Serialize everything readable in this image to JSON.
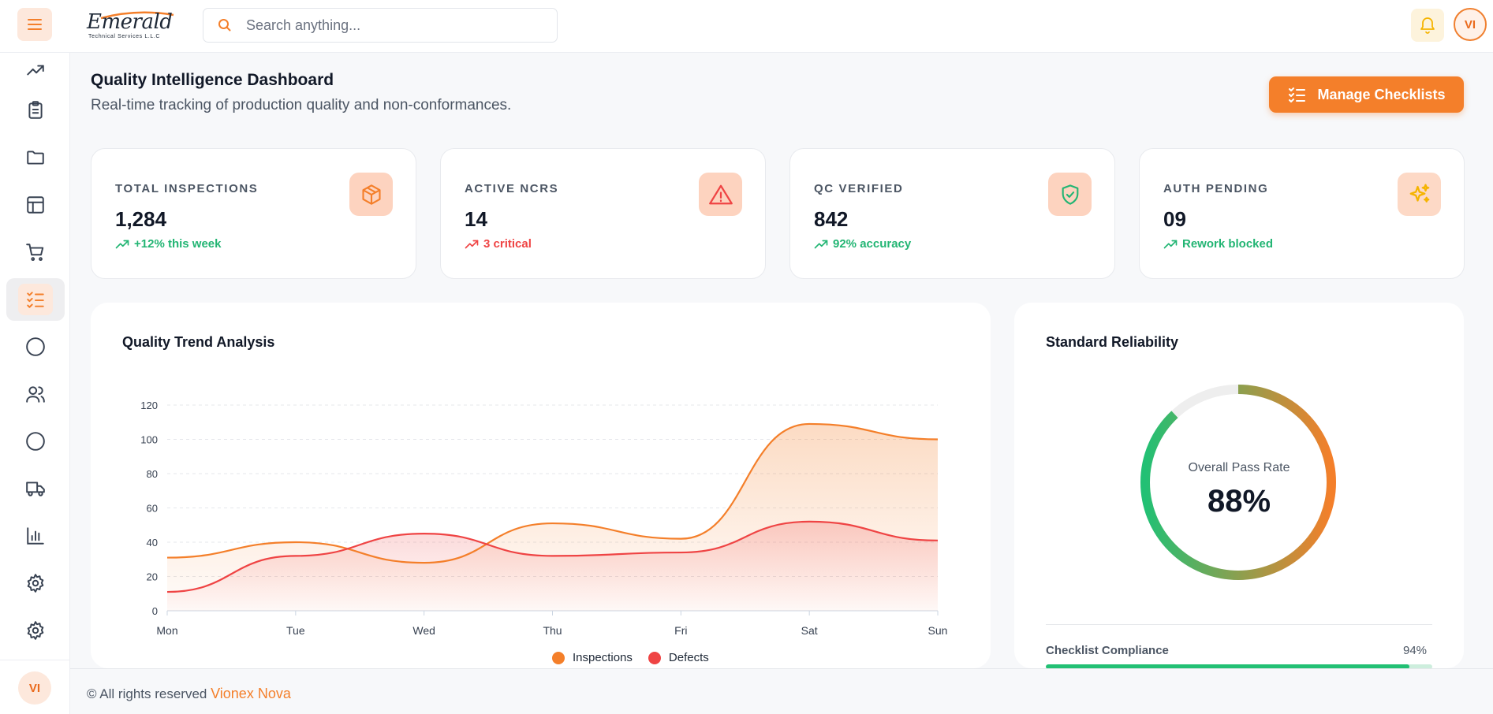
{
  "header": {
    "logo_word": "Emerald",
    "logo_tagline": "Technical Services L.L.C",
    "search_placeholder": "Search anything...",
    "user_initials": "VI"
  },
  "sidebar": {
    "items": [
      {
        "icon": "trending-up-icon"
      },
      {
        "icon": "clipboard-icon"
      },
      {
        "icon": "folder-icon"
      },
      {
        "icon": "layout-icon"
      },
      {
        "icon": "cart-icon"
      },
      {
        "icon": "checklist-icon",
        "active": true
      },
      {
        "icon": "circle-icon"
      },
      {
        "icon": "users-icon"
      },
      {
        "icon": "circle-icon"
      },
      {
        "icon": "truck-icon"
      },
      {
        "icon": "bar-chart-icon"
      },
      {
        "icon": "gear-icon"
      },
      {
        "icon": "gear-icon"
      }
    ],
    "user_initials": "VI"
  },
  "page": {
    "title": "Quality Intelligence Dashboard",
    "subtitle": "Real-time tracking of production quality and non-conformances.",
    "action_label": "Manage Checklists"
  },
  "stats": [
    {
      "label": "TOTAL INSPECTIONS",
      "value": "1,284",
      "note": "+12% this week",
      "note_color": "#22b573",
      "icon": "box-icon"
    },
    {
      "label": "ACTIVE NCRS",
      "value": "14",
      "note": "3 critical",
      "note_color": "#ef4444",
      "icon": "alert-triangle-icon"
    },
    {
      "label": "QC VERIFIED",
      "value": "842",
      "note": "92% accuracy",
      "note_color": "#22b573",
      "icon": "shield-check-icon"
    },
    {
      "label": "AUTH PENDING",
      "value": "09",
      "note": "Rework blocked",
      "note_color": "#22b573",
      "icon": "sparkles-icon"
    }
  ],
  "trend": {
    "title": "Quality Trend Analysis"
  },
  "chart_data": {
    "type": "area",
    "categories": [
      "Mon",
      "Tue",
      "Wed",
      "Thu",
      "Fri",
      "Sat",
      "Sun"
    ],
    "series": [
      {
        "name": "Inspections",
        "values": [
          31,
          40,
          28,
          51,
          42,
          109,
          100
        ],
        "color": "#f47f2a"
      },
      {
        "name": "Defects",
        "values": [
          11,
          32,
          45,
          32,
          34,
          52,
          41
        ],
        "color": "#ef4444"
      }
    ],
    "yticks": [
      "0",
      "20",
      "40",
      "60",
      "80",
      "100",
      "120"
    ],
    "ylim": [
      0,
      120
    ],
    "grid": true,
    "legend": "bottom"
  },
  "reliability": {
    "title": "Standard Reliability",
    "gauge_label": "Overall Pass Rate",
    "gauge_value": "88%",
    "gauge_fraction": 0.88,
    "compliance_label": "Checklist Compliance",
    "compliance_value": "94%",
    "compliance_fraction": 0.94
  },
  "footer": {
    "text": "© All rights reserved",
    "brand": "Vionex Nova"
  }
}
